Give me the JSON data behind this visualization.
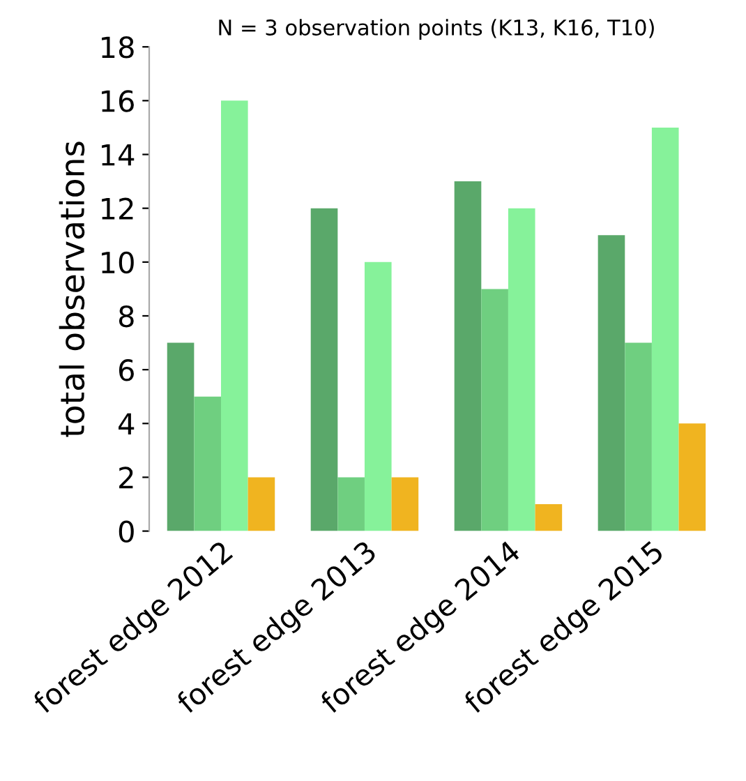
{
  "chart_data": {
    "type": "bar",
    "title": "N = 3 observation points (K13, K16, T10)",
    "ylabel": "total observations",
    "categories": [
      "forest edge 2012",
      "forest edge 2013",
      "forest edge 2014",
      "forest edge 2015"
    ],
    "series": [
      {
        "color": "#5aa86a",
        "values": [
          7,
          12,
          13,
          11
        ]
      },
      {
        "color": "#6fcf80",
        "values": [
          5,
          2,
          9,
          7
        ]
      },
      {
        "color": "#86f29a",
        "values": [
          16,
          10,
          12,
          15
        ]
      },
      {
        "color": "#f0b420",
        "values": [
          2,
          2,
          1,
          4
        ]
      }
    ],
    "ylim": [
      0,
      18
    ],
    "yticks": [
      0,
      2,
      4,
      6,
      8,
      10,
      12,
      14,
      16,
      18
    ],
    "grid": false,
    "legend": false
  }
}
